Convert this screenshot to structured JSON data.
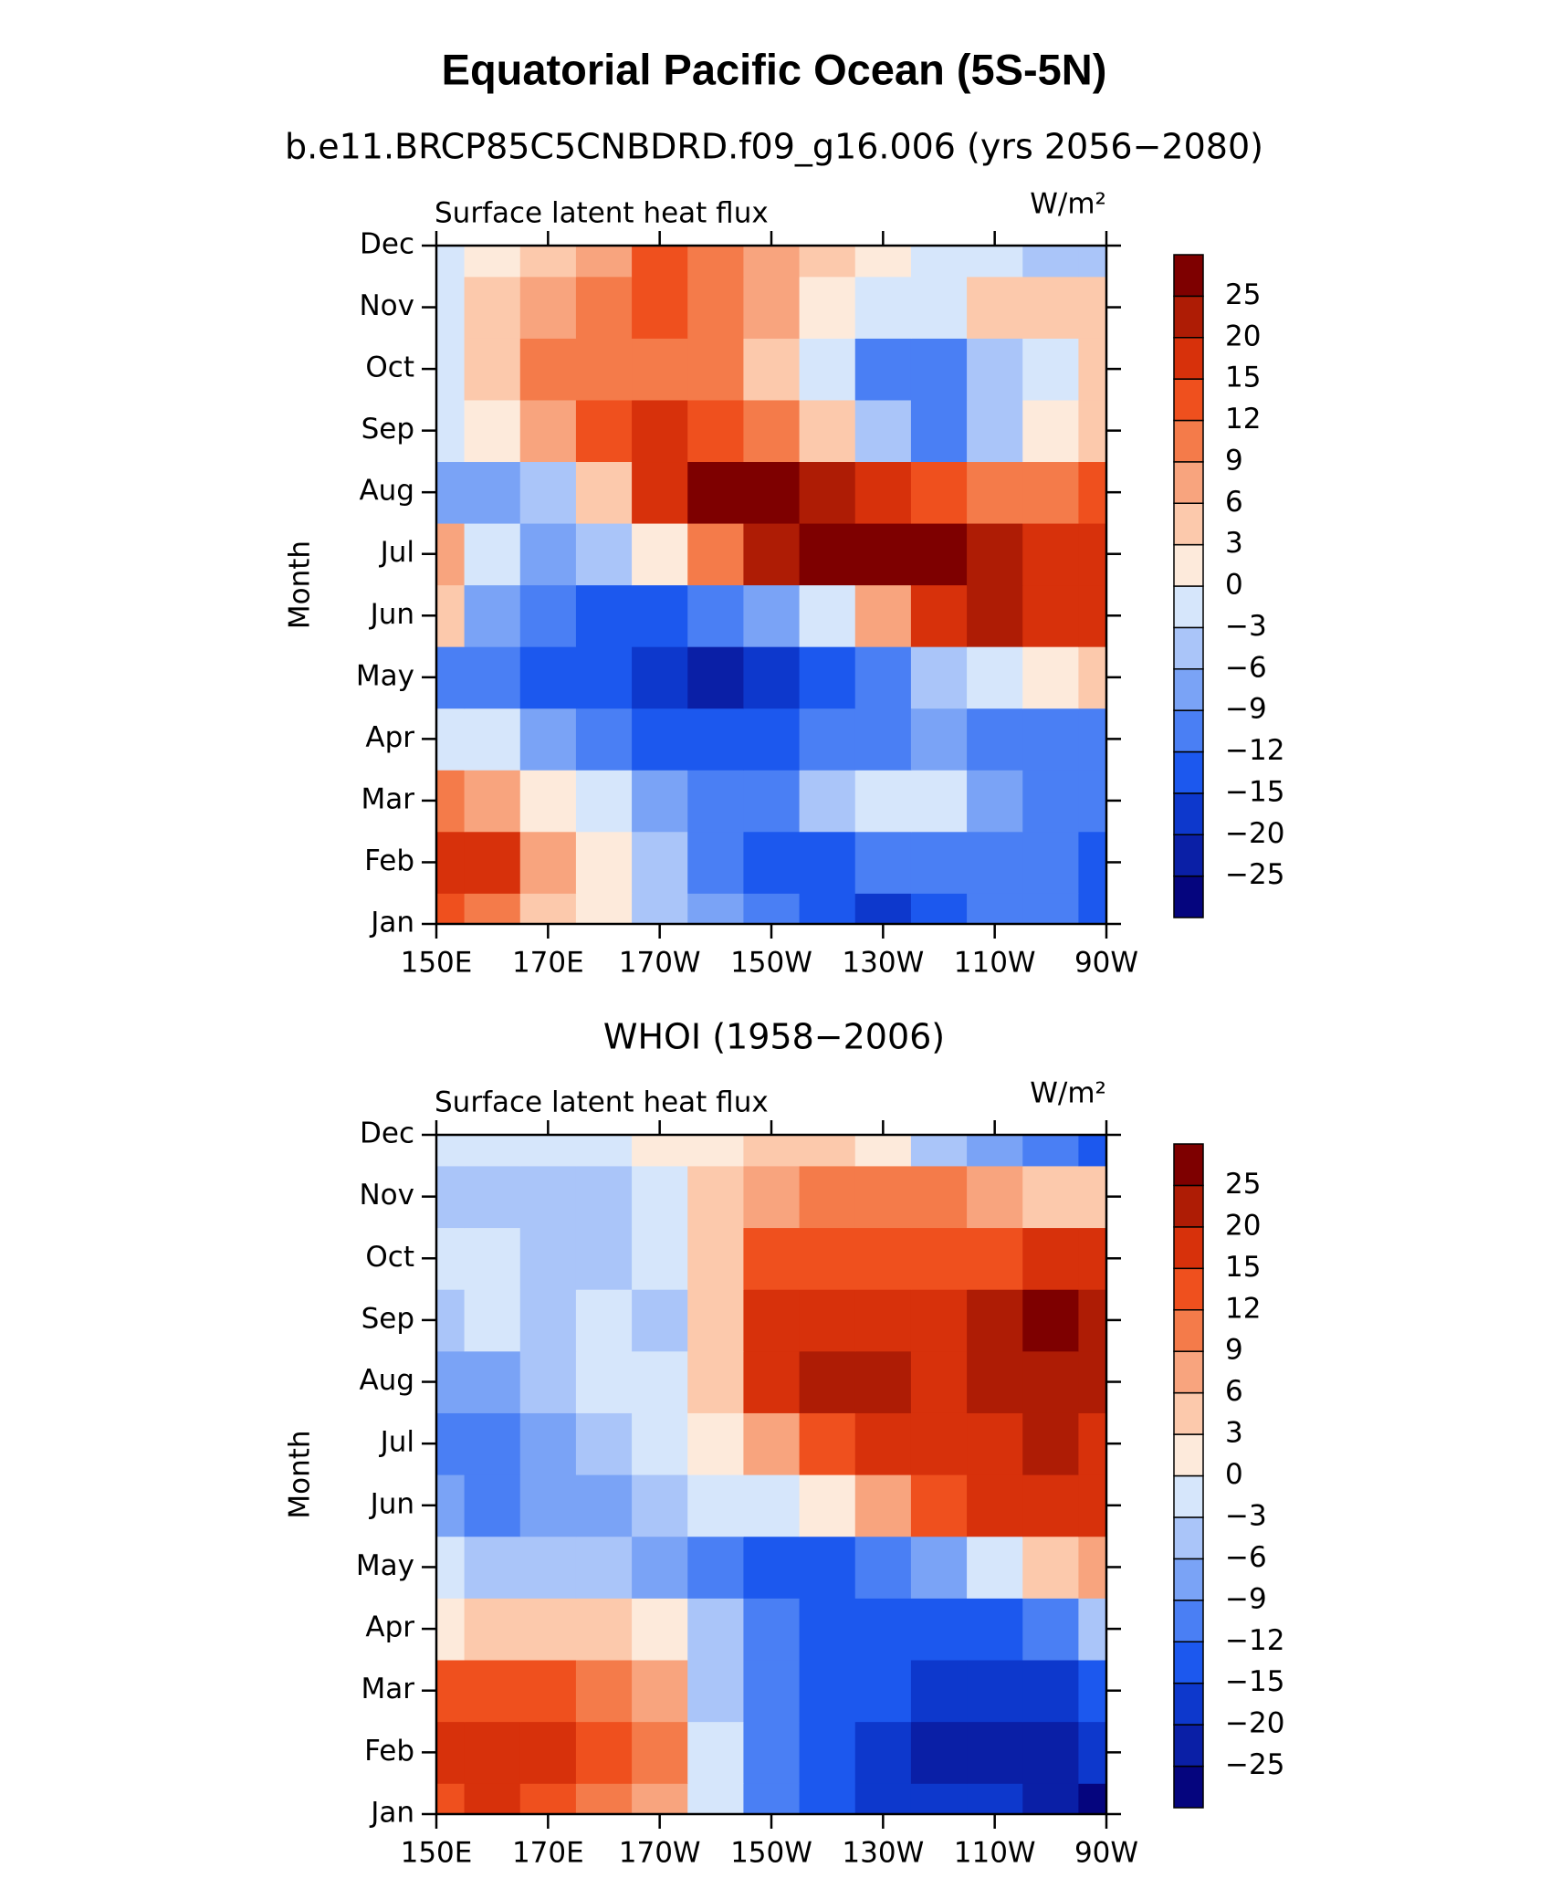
{
  "title": "Equatorial Pacific Ocean (5S-5N)",
  "chart_data": [
    {
      "type": "contour",
      "title": "b.e11.BRCP85C5CNBDRD.f09_g16.006 (yrs 2056−2080)",
      "left_string": "Surface latent heat flux",
      "units": "W/m²",
      "ylabel": "Month",
      "categories": [
        "Jan",
        "Feb",
        "Mar",
        "Apr",
        "May",
        "Jun",
        "Jul",
        "Aug",
        "Sep",
        "Oct",
        "Nov",
        "Dec"
      ],
      "x": [
        150,
        160,
        170,
        180,
        190,
        200,
        210,
        220,
        230,
        240,
        250,
        260,
        270
      ],
      "xlim": [
        150,
        270
      ],
      "xticks": [
        {
          "value": 150,
          "label": "150E"
        },
        {
          "value": 170,
          "label": "170E"
        },
        {
          "value": 190,
          "label": "170W"
        },
        {
          "value": 210,
          "label": "150W"
        },
        {
          "value": 230,
          "label": "130W"
        },
        {
          "value": 250,
          "label": "110W"
        },
        {
          "value": 270,
          "label": "90W"
        }
      ],
      "values": [
        [
          12,
          9,
          3,
          0,
          -6,
          -9,
          -12,
          -15,
          -20,
          -15,
          -12,
          -12,
          -15
        ],
        [
          15,
          15,
          6,
          0,
          -6,
          -12,
          -15,
          -15,
          -12,
          -12,
          -12,
          -12,
          -15
        ],
        [
          9,
          6,
          0,
          -3,
          -9,
          -10,
          -12,
          -6,
          -3,
          -2,
          -9,
          -12,
          -12
        ],
        [
          -3,
          -3,
          -9,
          -12,
          -15,
          -15,
          -15,
          -12,
          -12,
          -9,
          -12,
          -12,
          -12
        ],
        [
          -12,
          -12,
          -15,
          -15,
          -20,
          -21,
          -18,
          -15,
          -12,
          -6,
          -3,
          0,
          3
        ],
        [
          3,
          -9,
          -12,
          -15,
          -15,
          -12,
          -9,
          -3,
          6,
          15,
          20,
          15,
          15
        ],
        [
          6,
          -3,
          -9,
          -6,
          0,
          9,
          20,
          26,
          26,
          26,
          20,
          15,
          15
        ],
        [
          -9,
          -9,
          -6,
          3,
          15,
          26,
          26,
          20,
          15,
          12,
          9,
          9,
          12
        ],
        [
          -3,
          0,
          6,
          12,
          15,
          12,
          9,
          3,
          -6,
          -12,
          -6,
          0,
          3
        ],
        [
          -3,
          3,
          9,
          9,
          9,
          9,
          3,
          -3,
          -12,
          -12,
          -6,
          -3,
          3
        ],
        [
          -3,
          3,
          6,
          9,
          12,
          9,
          6,
          0,
          -3,
          -3,
          3,
          3,
          3
        ],
        [
          -3,
          0,
          3,
          6,
          12,
          9,
          6,
          3,
          0,
          -3,
          -3,
          -6,
          -6
        ]
      ],
      "levels": [
        {
          "value": -25,
          "label": "−25"
        },
        {
          "value": -20,
          "label": "−20"
        },
        {
          "value": -15,
          "label": "−15"
        },
        {
          "value": -12,
          "label": "−12"
        },
        {
          "value": -9,
          "label": "−9"
        },
        {
          "value": -6,
          "label": "−6"
        },
        {
          "value": -3,
          "label": "−3"
        },
        0,
        3,
        6,
        9,
        12,
        15,
        20,
        25
      ],
      "colors": [
        "#05057e",
        "#0a1fa6",
        "#0d38cc",
        "#1c58ee",
        "#4a7ff4",
        "#7aa3f6",
        "#aac5f9",
        "#d6e6fb",
        "#fdeadb",
        "#fcc9ac",
        "#f8a47e",
        "#f47b4a",
        "#ef501e",
        "#d7310b",
        "#ae1c05",
        "#7e0000"
      ]
    },
    {
      "type": "contour",
      "title": "WHOI (1958−2006)",
      "left_string": "Surface latent heat flux",
      "units": "W/m²",
      "ylabel": "Month",
      "categories": [
        "Jan",
        "Feb",
        "Mar",
        "Apr",
        "May",
        "Jun",
        "Jul",
        "Aug",
        "Sep",
        "Oct",
        "Nov",
        "Dec"
      ],
      "x": [
        150,
        160,
        170,
        180,
        190,
        200,
        210,
        220,
        230,
        240,
        250,
        260,
        270
      ],
      "xlim": [
        150,
        270
      ],
      "xticks": [
        {
          "value": 150,
          "label": "150E"
        },
        {
          "value": 170,
          "label": "170E"
        },
        {
          "value": 190,
          "label": "170W"
        },
        {
          "value": 210,
          "label": "150W"
        },
        {
          "value": 230,
          "label": "130W"
        },
        {
          "value": 250,
          "label": "110W"
        },
        {
          "value": 270,
          "label": "90W"
        }
      ],
      "values": [
        [
          12,
          15,
          12,
          9,
          6,
          -3,
          -12,
          -15,
          -20,
          -20,
          -20,
          -25,
          -26
        ],
        [
          15,
          15,
          15,
          12,
          9,
          -3,
          -12,
          -15,
          -20,
          -25,
          -25,
          -25,
          -20
        ],
        [
          12,
          12,
          12,
          9,
          6,
          -6,
          -12,
          -15,
          -15,
          -20,
          -20,
          -20,
          -15
        ],
        [
          0,
          3,
          3,
          3,
          0,
          -6,
          -12,
          -15,
          -15,
          -15,
          -15,
          -12,
          -6
        ],
        [
          -3,
          -6,
          -6,
          -6,
          -9,
          -12,
          -15,
          -15,
          -12,
          -9,
          -3,
          3,
          6
        ],
        [
          -9,
          -12,
          -9,
          -9,
          -6,
          -3,
          -3,
          0,
          6,
          12,
          15,
          15,
          15
        ],
        [
          -12,
          -12,
          -9,
          -6,
          -3,
          0,
          6,
          12,
          15,
          15,
          15,
          20,
          15
        ],
        [
          -9,
          -9,
          -6,
          -3,
          -3,
          3,
          15,
          20,
          20,
          15,
          20,
          20,
          20
        ],
        [
          -6,
          -3,
          -6,
          -3,
          -6,
          3,
          15,
          15,
          15,
          15,
          20,
          25,
          20
        ],
        [
          -3,
          -3,
          -6,
          -6,
          -3,
          3,
          12,
          12,
          12,
          12,
          12,
          15,
          15
        ],
        [
          -6,
          -6,
          -6,
          -6,
          -3,
          3,
          6,
          9,
          9,
          9,
          6,
          3,
          3
        ],
        [
          -3,
          -3,
          -3,
          -3,
          0,
          0,
          3,
          3,
          0,
          -6,
          -9,
          -12,
          -15
        ]
      ],
      "levels": [
        {
          "value": -25,
          "label": "−25"
        },
        {
          "value": -20,
          "label": "−20"
        },
        {
          "value": -15,
          "label": "−15"
        },
        {
          "value": -12,
          "label": "−12"
        },
        {
          "value": -9,
          "label": "−9"
        },
        {
          "value": -6,
          "label": "−6"
        },
        {
          "value": -3,
          "label": "−3"
        },
        0,
        3,
        6,
        9,
        12,
        15,
        20,
        25
      ],
      "colors": [
        "#05057e",
        "#0a1fa6",
        "#0d38cc",
        "#1c58ee",
        "#4a7ff4",
        "#7aa3f6",
        "#aac5f9",
        "#d6e6fb",
        "#fdeadb",
        "#fcc9ac",
        "#f8a47e",
        "#f47b4a",
        "#ef501e",
        "#d7310b",
        "#ae1c05",
        "#7e0000"
      ]
    }
  ]
}
